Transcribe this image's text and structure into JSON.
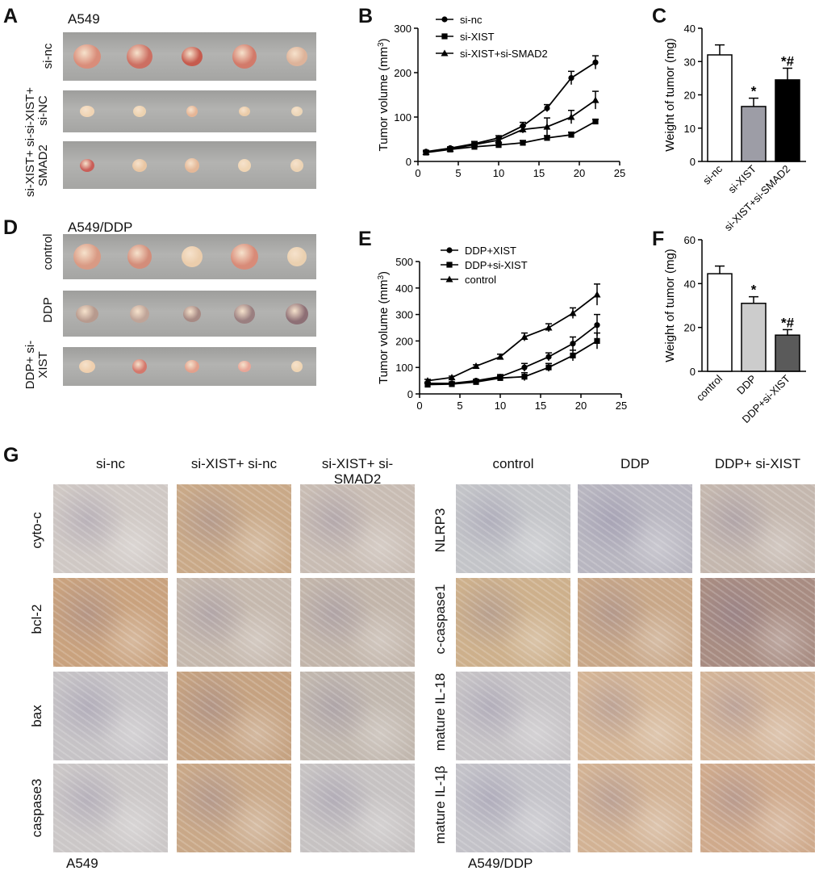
{
  "panels": {
    "A": {
      "letter": "A",
      "cell_line": "A549",
      "rows": [
        "si-nc",
        "si-XIST+ si-NC",
        "si-XIST+ si-SMAD2"
      ]
    },
    "B": {
      "letter": "B"
    },
    "C": {
      "letter": "C"
    },
    "D": {
      "letter": "D",
      "cell_line": "A549/DDP",
      "rows": [
        "control",
        "DDP",
        "DDP+ si-XIST"
      ]
    },
    "E": {
      "letter": "E"
    },
    "F": {
      "letter": "F"
    },
    "G": {
      "letter": "G",
      "left_columns": [
        "si-nc",
        "si-XIST+ si-nc",
        "si-XIST+ si-SMAD2"
      ],
      "right_columns": [
        "control",
        "DDP",
        "DDP+ si-XIST"
      ],
      "left_rows": [
        "cyto-c",
        "bcl-2",
        "bax",
        "caspase3"
      ],
      "right_rows": [
        "NLRP3",
        "c-caspase1",
        "mature IL-18",
        "mature IL-1β"
      ],
      "left_footer": "A549",
      "right_footer": "A549/DDP"
    }
  },
  "chart_data": [
    {
      "id": "B",
      "type": "line",
      "ylabel": "Tumor volume (mm3)",
      "xlim": [
        0,
        25
      ],
      "ylim": [
        0,
        300
      ],
      "xticks": [
        "0",
        "5",
        "10",
        "15",
        "20",
        "25"
      ],
      "yticks": [
        "0",
        "100",
        "200",
        "300"
      ],
      "x": [
        1,
        4,
        7,
        10,
        13,
        16,
        19,
        22
      ],
      "series": [
        {
          "name": "si-nc",
          "marker": "circle",
          "values": [
            22,
            30,
            40,
            53,
            80,
            120,
            188,
            223
          ],
          "errors": [
            3,
            3,
            5,
            5,
            8,
            8,
            15,
            15
          ]
        },
        {
          "name": "si-XIST",
          "marker": "square",
          "values": [
            20,
            27,
            33,
            37,
            42,
            53,
            60,
            90
          ],
          "errors": [
            2,
            3,
            3,
            4,
            5,
            5,
            6,
            5
          ]
        },
        {
          "name": "si-XIST+si-SMAD2",
          "marker": "triangle",
          "values": [
            21,
            28,
            38,
            48,
            72,
            78,
            100,
            138
          ],
          "errors": [
            2,
            3,
            4,
            5,
            8,
            20,
            15,
            20
          ]
        }
      ]
    },
    {
      "id": "C",
      "type": "bar",
      "ylabel": "Weight of tumor (mg)",
      "ylim": [
        0,
        40
      ],
      "yticks": [
        "0",
        "10",
        "20",
        "30",
        "40"
      ],
      "categories": [
        "si-nc",
        "si-XIST",
        "si-XIST+si-SMAD2"
      ],
      "values": [
        32,
        16.5,
        24.5
      ],
      "errors": [
        3,
        2.5,
        3.5
      ],
      "colors": [
        "#ffffff",
        "#9d9da6",
        "#000000"
      ],
      "annotations": [
        "",
        "*",
        "*#"
      ]
    },
    {
      "id": "E",
      "type": "line",
      "ylabel": "Tumor volume (mm3)",
      "xlim": [
        0,
        25
      ],
      "ylim": [
        0,
        500
      ],
      "xticks": [
        "0",
        "5",
        "10",
        "15",
        "20",
        "25"
      ],
      "yticks": [
        "0",
        "100",
        "200",
        "300",
        "400",
        "500"
      ],
      "x": [
        1,
        4,
        7,
        10,
        13,
        16,
        19,
        22
      ],
      "series": [
        {
          "name": "DDP+XIST",
          "marker": "circle",
          "values": [
            40,
            40,
            50,
            65,
            100,
            140,
            190,
            260
          ],
          "errors": [
            5,
            5,
            5,
            8,
            15,
            15,
            25,
            40
          ]
        },
        {
          "name": "DDP+si-XIST",
          "marker": "square",
          "values": [
            35,
            37,
            45,
            60,
            65,
            100,
            145,
            200
          ],
          "errors": [
            5,
            5,
            5,
            8,
            15,
            15,
            20,
            30
          ]
        },
        {
          "name": "control",
          "marker": "triangle",
          "values": [
            50,
            62,
            105,
            140,
            215,
            250,
            305,
            375
          ],
          "errors": [
            5,
            5,
            5,
            10,
            15,
            15,
            20,
            40
          ]
        }
      ]
    },
    {
      "id": "F",
      "type": "bar",
      "ylabel": "Weight of tumor (mg)",
      "ylim": [
        0,
        60
      ],
      "yticks": [
        "0",
        "20",
        "40",
        "60"
      ],
      "categories": [
        "control",
        "DDP",
        "DDP+si-XIST"
      ],
      "values": [
        44.5,
        31,
        16.5
      ],
      "errors": [
        3.5,
        3,
        2.5
      ],
      "colors": [
        "#ffffff",
        "#cccccc",
        "#5a5a5a"
      ],
      "annotations": [
        "",
        "*",
        "*#"
      ]
    }
  ],
  "colors": {
    "tumor_red": "#c96a5a",
    "tumor_pale": "#e8c9a6",
    "tissue_brown": "#c49a72",
    "tissue_gray": "#c8c8cb"
  }
}
